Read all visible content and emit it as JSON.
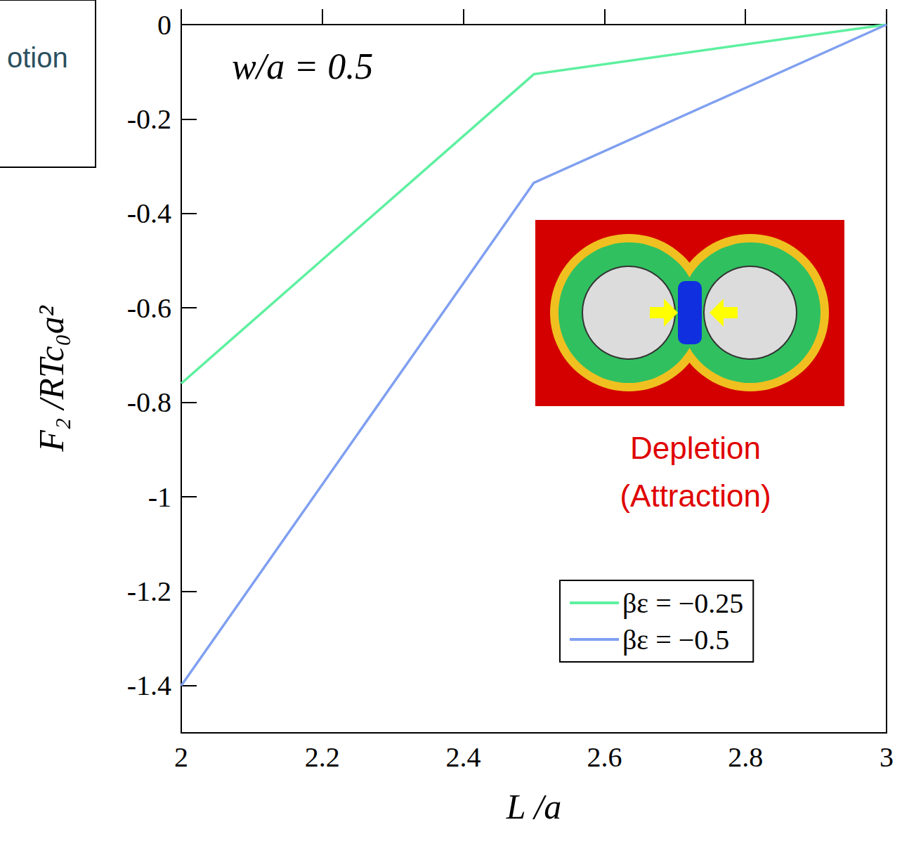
{
  "chart_data": {
    "type": "line",
    "x_label": "L /a",
    "y_label": "F₂ /RTc₀a²",
    "annotations": [
      "w/a = 0.5",
      "Depletion",
      "(Attraction)",
      "otion"
    ],
    "xlim": [
      2,
      3
    ],
    "xticks": [
      2,
      2.2,
      2.4,
      2.6,
      2.8,
      3
    ],
    "ylim": [
      -1.5,
      0
    ],
    "yticks": [
      0,
      -0.2,
      -0.4,
      -0.6,
      -0.8,
      -1,
      -1.2,
      -1.4
    ],
    "grid": false,
    "legend": "lower right",
    "series": [
      {
        "name": "βε = −0.25",
        "color": "#5ef0a0",
        "x": [
          2,
          2.5,
          3
        ],
        "values": [
          -0.76,
          -0.105,
          0
        ]
      },
      {
        "name": "βε = −0.5",
        "color": "#80a0f0",
        "x": [
          2,
          2.5,
          3
        ],
        "values": [
          -1.4,
          -0.335,
          0
        ]
      }
    ]
  }
}
